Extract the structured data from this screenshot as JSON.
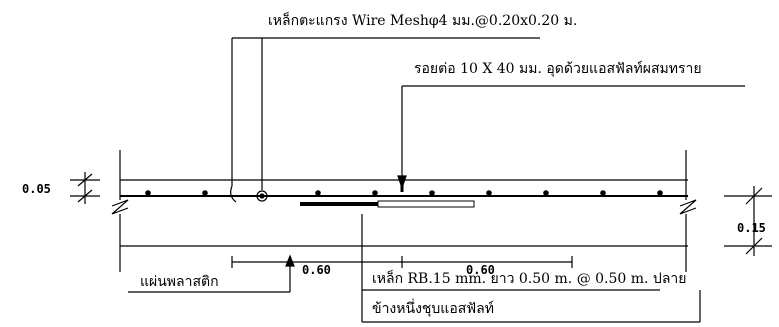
{
  "labels": {
    "wire_mesh": "เหล็กตะแกรง Wire Meshφ4 มม.@0.20x0.20 ม.",
    "joint": "รอยต่อ 10 X 40 มม. อุดด้วยแอสฟัลท์ผสมทราย",
    "plastic_sheet": "แผ่นพลาสติก",
    "dowel_line1": "เหล็ก RB.15 mm. ยาว 0.50 m. @ 0.50 m. ปลาย",
    "dowel_line2": "ข้างหนึ่งชุบแอสฟัลท์"
  },
  "dimensions": {
    "top_thickness": "0.05",
    "slab_thickness": "0.15",
    "left_span": "0.60",
    "right_span": "0.60"
  }
}
